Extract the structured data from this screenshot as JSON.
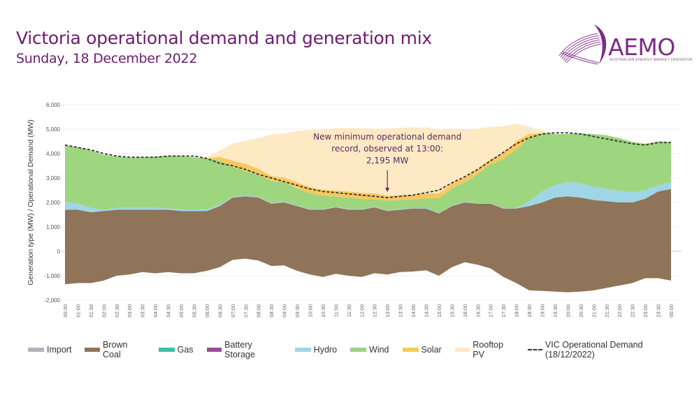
{
  "header": {
    "title": "Victoria operational demand and generation mix",
    "subtitle": "Sunday, 18 December 2022"
  },
  "logo": {
    "name": "AEMO",
    "tagline": "AUSTRALIAN ENERGY MARKET OPERATOR",
    "icon": "aemo-swoosh-icon"
  },
  "colors": {
    "title": "#6b1e6e",
    "import": "#b3b3bd",
    "brown_coal": "#8f7459",
    "gas": "#3fbfa8",
    "battery_storage": "#9c4a9a",
    "hydro": "#9fd6e6",
    "wind": "#9ed57f",
    "solar": "#f7c860",
    "rooftop_pv": "#fde9c4",
    "demand": "#333333",
    "annotation": "#5e2a63"
  },
  "chart_data": {
    "type": "area",
    "stacked": true,
    "title": "Victoria operational demand and generation mix",
    "subtitle": "Sunday, 18 December 2022",
    "xlabel": "",
    "ylabel": "Generation type (MW) / Operational Demand (MW)",
    "ylim": [
      -2000,
      6000
    ],
    "yticks": [
      -2000,
      -1000,
      0,
      1000,
      2000,
      3000,
      4000,
      5000,
      6000
    ],
    "ytick_labels": [
      "-2,000",
      "-1,000",
      "0",
      "1,000",
      "2,000",
      "3,000",
      "4,000",
      "5,000",
      "6,000"
    ],
    "grid": true,
    "legend_position": "bottom",
    "x": [
      "00:30",
      "01:00",
      "01:30",
      "02:00",
      "02:30",
      "03:00",
      "03:30",
      "04:00",
      "04:30",
      "05:00",
      "05:30",
      "06:00",
      "06:30",
      "07:00",
      "07:30",
      "08:00",
      "08:30",
      "09:00",
      "09:30",
      "10:00",
      "10:30",
      "11:00",
      "11:30",
      "12:00",
      "12:30",
      "13:00",
      "13:30",
      "14:00",
      "14:30",
      "15:00",
      "15:30",
      "16:00",
      "16:30",
      "17:00",
      "17:30",
      "18:00",
      "18:30",
      "19:00",
      "19:30",
      "20:00",
      "20:30",
      "21:00",
      "21:30",
      "22:00",
      "22:30",
      "23:00",
      "23:30",
      "00:00"
    ],
    "negative_series": [
      {
        "name": "Brown Coal (negative / exports)",
        "values": [
          -1350,
          -1300,
          -1300,
          -1200,
          -1000,
          -950,
          -850,
          -900,
          -850,
          -900,
          -900,
          -800,
          -650,
          -350,
          -300,
          -380,
          -600,
          -580,
          -800,
          -950,
          -1050,
          -920,
          -1000,
          -1050,
          -900,
          -950,
          -850,
          -830,
          -780,
          -1000,
          -650,
          -450,
          -550,
          -700,
          -1050,
          -1300,
          -1600,
          -1620,
          -1650,
          -1680,
          -1650,
          -1600,
          -1500,
          -1400,
          -1300,
          -1100,
          -1100,
          -1200
        ]
      }
    ],
    "series": [
      {
        "name": "Import",
        "values": [
          0,
          0,
          0,
          0,
          0,
          0,
          0,
          0,
          0,
          0,
          0,
          0,
          0,
          0,
          0,
          0,
          0,
          0,
          0,
          0,
          0,
          0,
          0,
          0,
          0,
          0,
          0,
          0,
          0,
          0,
          0,
          0,
          0,
          0,
          0,
          0,
          0,
          0,
          0,
          0,
          0,
          0,
          0,
          0,
          0,
          0,
          0,
          0
        ]
      },
      {
        "name": "Brown Coal",
        "values": [
          1700,
          1700,
          1600,
          1650,
          1700,
          1700,
          1700,
          1700,
          1700,
          1650,
          1650,
          1650,
          1850,
          2200,
          2250,
          2200,
          1950,
          2000,
          1850,
          1700,
          1700,
          1800,
          1700,
          1700,
          1800,
          1650,
          1700,
          1750,
          1750,
          1550,
          1850,
          2000,
          1950,
          1950,
          1750,
          1750,
          1850,
          2000,
          2200,
          2250,
          2200,
          2100,
          2050,
          2000,
          2000,
          2150,
          2450,
          2550
        ]
      },
      {
        "name": "Gas",
        "values": [
          0,
          0,
          0,
          0,
          0,
          0,
          0,
          0,
          0,
          0,
          0,
          0,
          0,
          0,
          0,
          0,
          0,
          0,
          0,
          0,
          0,
          0,
          0,
          0,
          0,
          0,
          0,
          0,
          0,
          0,
          0,
          0,
          0,
          0,
          0,
          0,
          0,
          0,
          0,
          0,
          0,
          0,
          0,
          0,
          0,
          0,
          0,
          0
        ]
      },
      {
        "name": "Battery Storage",
        "values": [
          0,
          0,
          0,
          0,
          0,
          0,
          0,
          0,
          0,
          0,
          0,
          0,
          0,
          0,
          0,
          0,
          0,
          0,
          0,
          0,
          0,
          0,
          0,
          0,
          0,
          0,
          0,
          0,
          0,
          0,
          0,
          0,
          0,
          0,
          0,
          0,
          0,
          0,
          0,
          0,
          0,
          0,
          0,
          0,
          0,
          0,
          0,
          0
        ]
      },
      {
        "name": "Hydro",
        "values": [
          330,
          250,
          180,
          50,
          80,
          80,
          80,
          80,
          60,
          50,
          50,
          60,
          60,
          40,
          30,
          30,
          30,
          20,
          20,
          20,
          20,
          20,
          20,
          20,
          20,
          20,
          20,
          20,
          20,
          20,
          20,
          20,
          20,
          20,
          20,
          20,
          200,
          450,
          500,
          600,
          580,
          550,
          500,
          480,
          430,
          350,
          250,
          280
        ]
      },
      {
        "name": "Wind",
        "values": [
          2300,
          2300,
          2350,
          2250,
          2100,
          2050,
          2070,
          2100,
          2150,
          2200,
          2150,
          2080,
          1800,
          1220,
          1000,
          900,
          900,
          800,
          700,
          650,
          550,
          420,
          480,
          420,
          300,
          400,
          380,
          350,
          400,
          600,
          700,
          800,
          1200,
          1600,
          2000,
          2400,
          2600,
          2350,
          2100,
          1950,
          2050,
          2150,
          2200,
          2150,
          2050,
          1900,
          1800,
          1650
        ]
      },
      {
        "name": "Solar",
        "values": [
          0,
          0,
          0,
          0,
          0,
          0,
          0,
          0,
          0,
          0,
          0,
          20,
          150,
          250,
          300,
          250,
          200,
          200,
          250,
          250,
          250,
          250,
          250,
          250,
          250,
          200,
          200,
          200,
          200,
          200,
          200,
          200,
          200,
          200,
          250,
          350,
          150,
          50,
          0,
          0,
          0,
          0,
          0,
          0,
          0,
          0,
          0,
          0
        ]
      },
      {
        "name": "Rooftop PV",
        "values": [
          0,
          0,
          0,
          0,
          0,
          0,
          0,
          0,
          0,
          0,
          0,
          50,
          250,
          700,
          950,
          1250,
          1700,
          1800,
          2100,
          2350,
          2450,
          2550,
          2600,
          2650,
          2650,
          2750,
          2750,
          2750,
          2700,
          2600,
          2250,
          1950,
          1650,
          1320,
          1100,
          700,
          300,
          100,
          0,
          0,
          0,
          0,
          0,
          0,
          0,
          0,
          0,
          0
        ]
      }
    ],
    "demand_line": {
      "name": "VIC Operational Demand (18/12/2022)",
      "values": [
        4350,
        4250,
        4150,
        4000,
        3900,
        3850,
        3850,
        3850,
        3900,
        3900,
        3900,
        3800,
        3600,
        3500,
        3350,
        3150,
        3000,
        2850,
        2700,
        2550,
        2450,
        2400,
        2350,
        2300,
        2250,
        2195,
        2250,
        2300,
        2400,
        2500,
        2800,
        3050,
        3350,
        3700,
        4050,
        4400,
        4650,
        4800,
        4850,
        4850,
        4800,
        4700,
        4600,
        4500,
        4400,
        4350,
        4450,
        4450
      ]
    },
    "annotation": {
      "text_lines": [
        "New minimum operational demand",
        "record, observed at 13:00:",
        "2,195 MW"
      ],
      "x": "13:00",
      "value": 2195
    }
  },
  "legend": [
    {
      "label": "Import",
      "key": "import"
    },
    {
      "label": "Brown Coal",
      "key": "brown_coal"
    },
    {
      "label": "Gas",
      "key": "gas"
    },
    {
      "label": "Battery Storage",
      "key": "battery_storage"
    },
    {
      "label": "Hydro",
      "key": "hydro"
    },
    {
      "label": "Wind",
      "key": "wind"
    },
    {
      "label": "Solar",
      "key": "solar"
    },
    {
      "label": "Rooftop PV",
      "key": "rooftop_pv"
    },
    {
      "label": "VIC Operational Demand (18/12/2022)",
      "key": "demand"
    }
  ]
}
